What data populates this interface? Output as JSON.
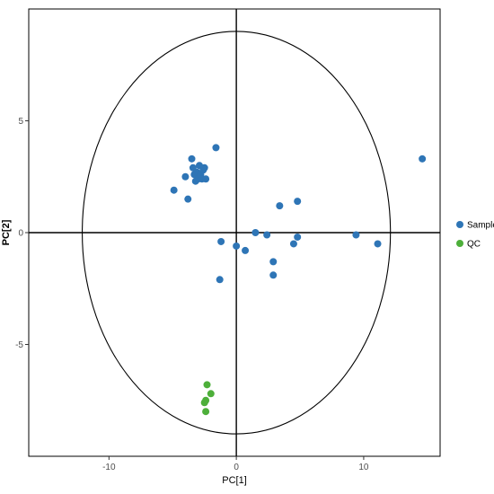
{
  "chart_data": {
    "type": "scatter",
    "title": "",
    "xlabel": "PC[1]",
    "ylabel": "PC[2]",
    "xlim": [
      -16.3,
      16.0
    ],
    "ylim": [
      -10.0,
      10.0
    ],
    "xticks": [
      -10,
      0,
      10
    ],
    "yticks": [
      5,
      0,
      -5
    ],
    "xtick_labels": [
      "-10",
      "0",
      "10"
    ],
    "ytick_labels": [
      "5",
      "0",
      "-5"
    ],
    "grid": false,
    "zero_lines": true,
    "ellipse": {
      "cx": 0,
      "cy": 0,
      "rx": 12.1,
      "ry": 9.0
    },
    "legend_position": "right",
    "series": [
      {
        "name": "Sample",
        "color": "#2e75b6",
        "points": [
          [
            -4.9,
            1.9
          ],
          [
            -4.0,
            2.5
          ],
          [
            -3.8,
            1.5
          ],
          [
            -3.5,
            3.3
          ],
          [
            -3.4,
            2.9
          ],
          [
            -3.3,
            2.6
          ],
          [
            -3.1,
            2.7
          ],
          [
            -3.0,
            2.4
          ],
          [
            -2.9,
            3.0
          ],
          [
            -2.8,
            2.6
          ],
          [
            -2.7,
            2.4
          ],
          [
            -2.6,
            2.8
          ],
          [
            -2.5,
            2.9
          ],
          [
            -2.4,
            2.4
          ],
          [
            -3.2,
            2.3
          ],
          [
            -1.6,
            3.8
          ],
          [
            -1.2,
            -0.4
          ],
          [
            -1.3,
            -2.1
          ],
          [
            0.0,
            -0.6
          ],
          [
            0.7,
            -0.8
          ],
          [
            1.5,
            0.0
          ],
          [
            2.4,
            -0.1
          ],
          [
            2.9,
            -1.3
          ],
          [
            2.9,
            -1.9
          ],
          [
            3.4,
            1.2
          ],
          [
            4.5,
            -0.5
          ],
          [
            4.8,
            -0.2
          ],
          [
            4.8,
            1.4
          ],
          [
            9.4,
            -0.1
          ],
          [
            11.1,
            -0.5
          ],
          [
            14.6,
            3.3
          ]
        ]
      },
      {
        "name": "QC",
        "color": "#4daf3a",
        "points": [
          [
            -2.3,
            -6.8
          ],
          [
            -2.0,
            -7.2
          ],
          [
            -2.4,
            -7.5
          ],
          [
            -2.5,
            -7.6
          ],
          [
            -2.4,
            -8.0
          ]
        ]
      }
    ]
  }
}
